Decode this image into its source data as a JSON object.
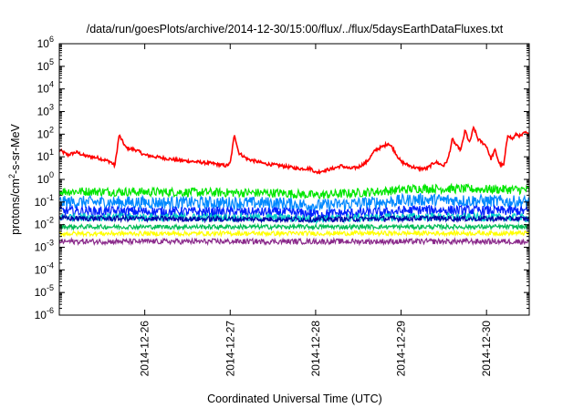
{
  "chart_data": {
    "type": "line",
    "title": "/data/run/goesPlots/archive/2014-12-30/15:00/flux/../flux/5daysEarthDataFluxes.txt",
    "xlabel": "Coordinated Universal Time (UTC)",
    "ylabel": {
      "prefix": "protons/cm",
      "sup": "2",
      "suffix": "-s-sr-MeV"
    },
    "yscale": "log",
    "ylim_exp": [
      -6,
      6
    ],
    "y_tick_exponents": [
      "-6",
      "-5",
      "-4",
      "-3",
      "-2",
      "-1",
      "0",
      "1",
      "2",
      "3",
      "4",
      "5",
      "6"
    ],
    "y_tick_base": "10",
    "xlim_days": [
      0,
      5.5
    ],
    "x_ticks": [
      {
        "day": 1,
        "label": "2014-12-26"
      },
      {
        "day": 2,
        "label": "2014-12-27"
      },
      {
        "day": 3,
        "label": "2014-12-28"
      },
      {
        "day": 4,
        "label": "2014-12-29"
      },
      {
        "day": 5,
        "label": "2014-12-30"
      }
    ],
    "grid": false,
    "legend": "none",
    "series": [
      {
        "color": "#ff0000",
        "noise": 0.07,
        "points": [
          [
            0.0,
            20
          ],
          [
            0.1,
            12
          ],
          [
            0.2,
            16
          ],
          [
            0.3,
            11
          ],
          [
            0.45,
            9
          ],
          [
            0.6,
            6
          ],
          [
            0.65,
            4
          ],
          [
            0.7,
            90
          ],
          [
            0.78,
            25
          ],
          [
            0.9,
            20
          ],
          [
            1.0,
            12
          ],
          [
            1.2,
            9
          ],
          [
            1.4,
            7
          ],
          [
            1.6,
            6
          ],
          [
            1.8,
            5
          ],
          [
            1.95,
            4
          ],
          [
            2.0,
            5
          ],
          [
            2.05,
            100
          ],
          [
            2.1,
            15
          ],
          [
            2.2,
            8
          ],
          [
            2.4,
            5
          ],
          [
            2.6,
            4
          ],
          [
            2.8,
            3
          ],
          [
            2.95,
            3
          ],
          [
            3.0,
            2
          ],
          [
            3.1,
            2.5
          ],
          [
            3.2,
            3
          ],
          [
            3.3,
            4
          ],
          [
            3.4,
            3
          ],
          [
            3.5,
            3.5
          ],
          [
            3.6,
            6
          ],
          [
            3.7,
            20
          ],
          [
            3.8,
            30
          ],
          [
            3.85,
            40
          ],
          [
            3.9,
            25
          ],
          [
            3.95,
            12
          ],
          [
            4.0,
            6
          ],
          [
            4.1,
            4
          ],
          [
            4.2,
            3
          ],
          [
            4.3,
            3
          ],
          [
            4.4,
            6
          ],
          [
            4.5,
            4
          ],
          [
            4.55,
            8
          ],
          [
            4.6,
            60
          ],
          [
            4.65,
            30
          ],
          [
            4.7,
            20
          ],
          [
            4.75,
            150
          ],
          [
            4.8,
            40
          ],
          [
            4.85,
            200
          ],
          [
            4.9,
            60
          ],
          [
            5.0,
            30
          ],
          [
            5.05,
            8
          ],
          [
            5.1,
            20
          ],
          [
            5.15,
            5
          ],
          [
            5.2,
            4
          ],
          [
            5.25,
            100
          ],
          [
            5.3,
            60
          ],
          [
            5.35,
            100
          ],
          [
            5.4,
            80
          ],
          [
            5.45,
            120
          ],
          [
            5.5,
            90
          ]
        ]
      },
      {
        "color": "#00e600",
        "noise": 0.2,
        "points": [
          [
            0,
            0.3
          ],
          [
            2.6,
            0.25
          ],
          [
            3.0,
            0.2
          ],
          [
            3.8,
            0.3
          ],
          [
            4.2,
            0.4
          ],
          [
            5.5,
            0.35
          ]
        ]
      },
      {
        "color": "#0088ff",
        "noise": 0.28,
        "points": [
          [
            0,
            0.1
          ],
          [
            2.6,
            0.09
          ],
          [
            3.0,
            0.07
          ],
          [
            3.8,
            0.1
          ],
          [
            4.2,
            0.13
          ],
          [
            5.5,
            0.1
          ]
        ]
      },
      {
        "color": "#0022ff",
        "noise": 0.22,
        "points": [
          [
            0,
            0.04
          ],
          [
            2.6,
            0.035
          ],
          [
            3.0,
            0.03
          ],
          [
            3.8,
            0.035
          ],
          [
            4.2,
            0.045
          ],
          [
            5.5,
            0.04
          ]
        ]
      },
      {
        "color": "#00cccc",
        "noise": 0.18,
        "points": [
          [
            0,
            0.022
          ],
          [
            2.6,
            0.02
          ],
          [
            3.0,
            0.018
          ],
          [
            4.2,
            0.022
          ],
          [
            5.5,
            0.02
          ]
        ]
      },
      {
        "color": "#0000aa",
        "noise": 0.12,
        "points": [
          [
            0,
            0.019
          ],
          [
            3.0,
            0.017
          ],
          [
            4.2,
            0.019
          ],
          [
            5.5,
            0.018
          ]
        ]
      },
      {
        "color": "#00bb55",
        "noise": 0.1,
        "points": [
          [
            0,
            0.008
          ],
          [
            5.5,
            0.008
          ]
        ]
      },
      {
        "color": "#ffff00",
        "noise": 0.1,
        "points": [
          [
            0,
            0.004
          ],
          [
            5.5,
            0.0042
          ]
        ]
      },
      {
        "color": "#8b2a8b",
        "noise": 0.12,
        "points": [
          [
            0,
            0.0018
          ],
          [
            5.5,
            0.0018
          ]
        ]
      }
    ]
  }
}
